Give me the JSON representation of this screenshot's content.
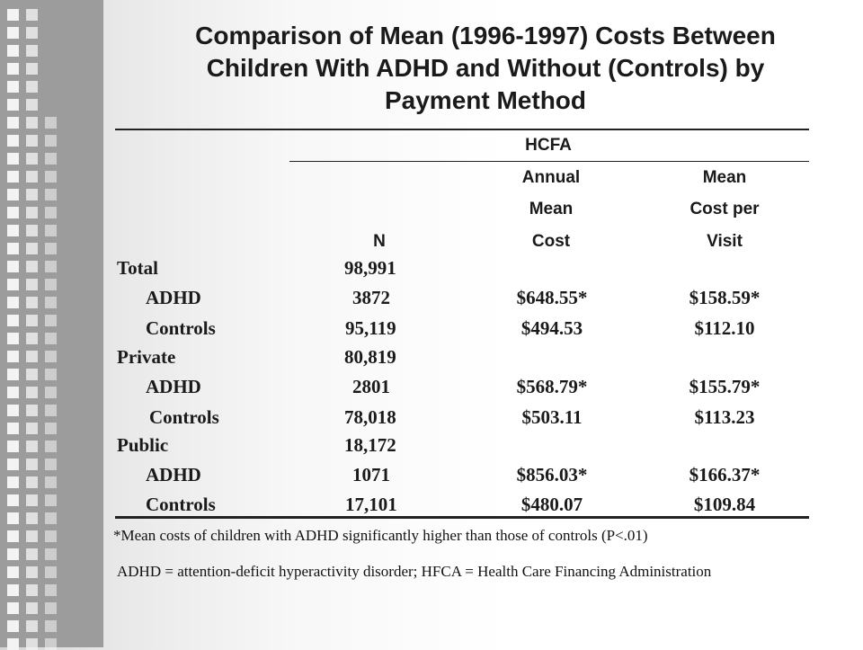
{
  "slide": {
    "title_lines": [
      "Comparison of Mean (1996-1997) Costs Between",
      "Children With ADHD and Without (Controls) by",
      "Payment Method"
    ]
  },
  "table": {
    "group_header": "HCFA",
    "columns": {
      "n": [
        "N"
      ],
      "annual_mean_cost": [
        "Annual",
        "Mean",
        "Cost"
      ],
      "mean_cost_per_visit": [
        "Mean",
        "Cost per",
        "Visit"
      ]
    },
    "rows": [
      {
        "label": "Total",
        "n": "98,991",
        "annual": "",
        "visit": ""
      },
      {
        "label": "ADHD",
        "n": "3872",
        "annual": "$648.55*",
        "visit": "$158.59*"
      },
      {
        "label": "Controls",
        "n": "95,119",
        "annual": "$494.53",
        "visit": "$112.10"
      },
      {
        "label": "Private",
        "n": "80,819",
        "annual": "",
        "visit": ""
      },
      {
        "label": "ADHD",
        "n": "2801",
        "annual": "$568.79*",
        "visit": "$155.79*"
      },
      {
        "label": "Controls",
        "n": "78,018",
        "annual": "$503.11",
        "visit": "$113.23"
      },
      {
        "label": "Public",
        "n": "18,172",
        "annual": "",
        "visit": ""
      },
      {
        "label": "ADHD",
        "n": "1071",
        "annual": "$856.03*",
        "visit": "$166.37*"
      },
      {
        "label": "Controls",
        "n": "17,101",
        "annual": "$480.07",
        "visit": "$109.84"
      }
    ]
  },
  "footnotes": [
    "*Mean costs of children with ADHD significantly higher than those of controls (P<.01)",
    "ADHD = attention-deficit hyperactivity disorder; HFCA = Health Care Financing Administration"
  ]
}
